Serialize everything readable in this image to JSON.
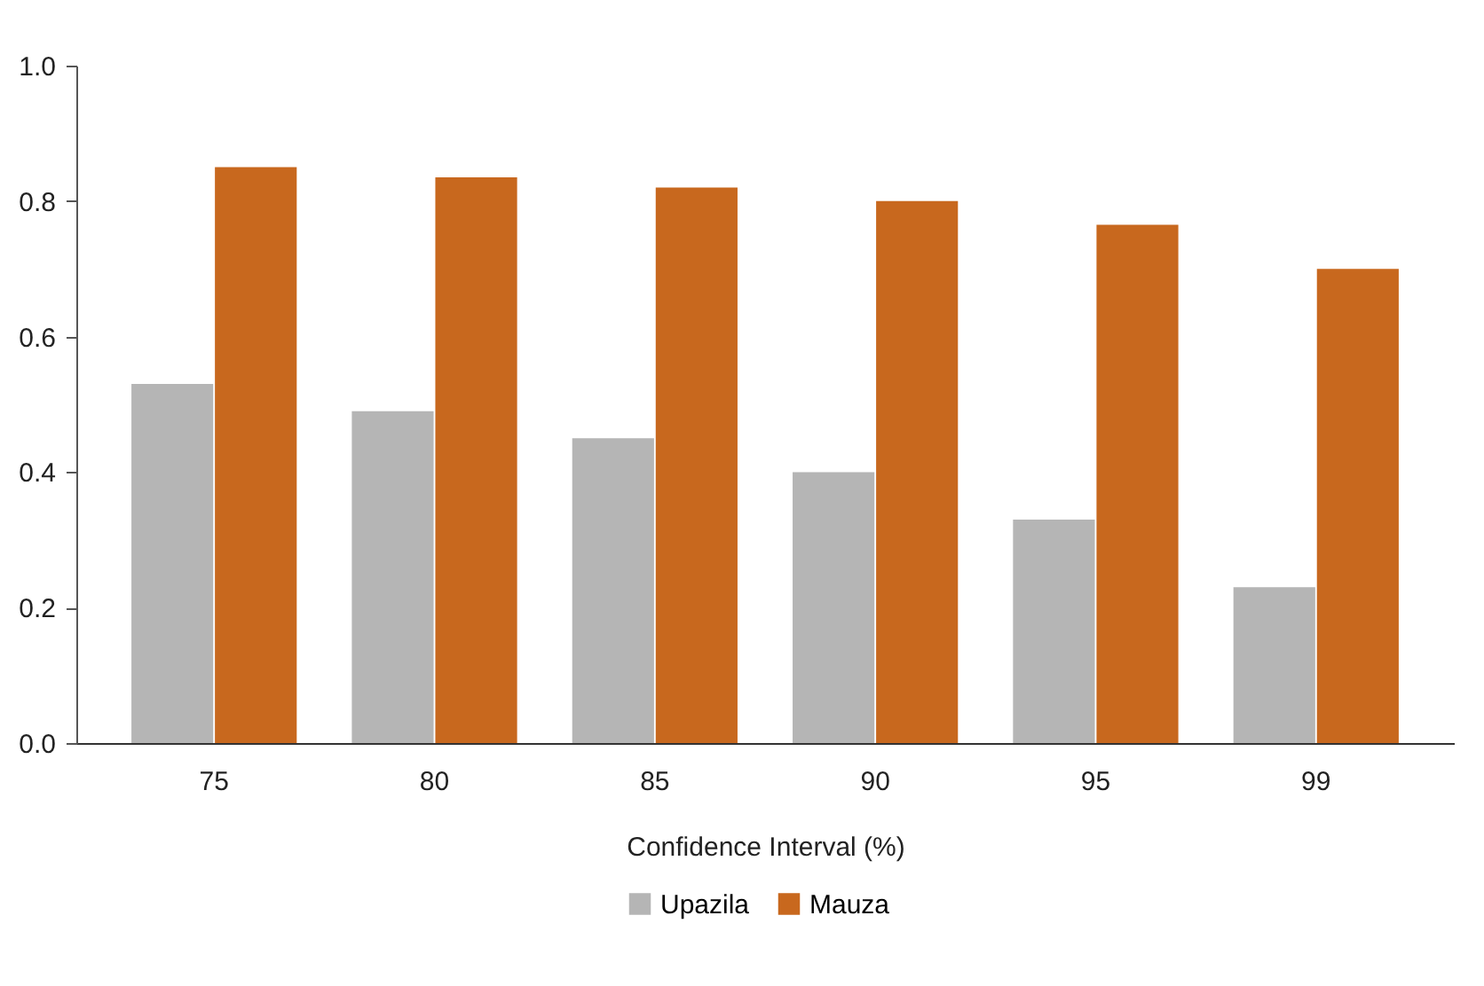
{
  "chart_data": {
    "type": "bar",
    "xlabel": "Confidence Interval (%)",
    "categories": [
      "75",
      "80",
      "85",
      "90",
      "95",
      "99"
    ],
    "series": [
      {
        "name": "Upazila",
        "color": "#b5b5b5",
        "values": [
          0.53,
          0.49,
          0.45,
          0.4,
          0.33,
          0.23
        ]
      },
      {
        "name": "Mauza",
        "color": "#c8681e",
        "values": [
          0.85,
          0.835,
          0.82,
          0.8,
          0.765,
          0.7
        ]
      }
    ],
    "ylim": [
      0,
      1
    ],
    "yticks": [
      {
        "value": 0,
        "label": "0.0"
      },
      {
        "value": 0.2,
        "label": "0.2"
      },
      {
        "value": 0.4,
        "label": "0.4"
      },
      {
        "value": 0.6,
        "label": "0.6"
      },
      {
        "value": 0.8,
        "label": "0.8"
      },
      {
        "value": 1,
        "label": "1.0"
      }
    ],
    "legend": "bottom",
    "grid": false
  }
}
